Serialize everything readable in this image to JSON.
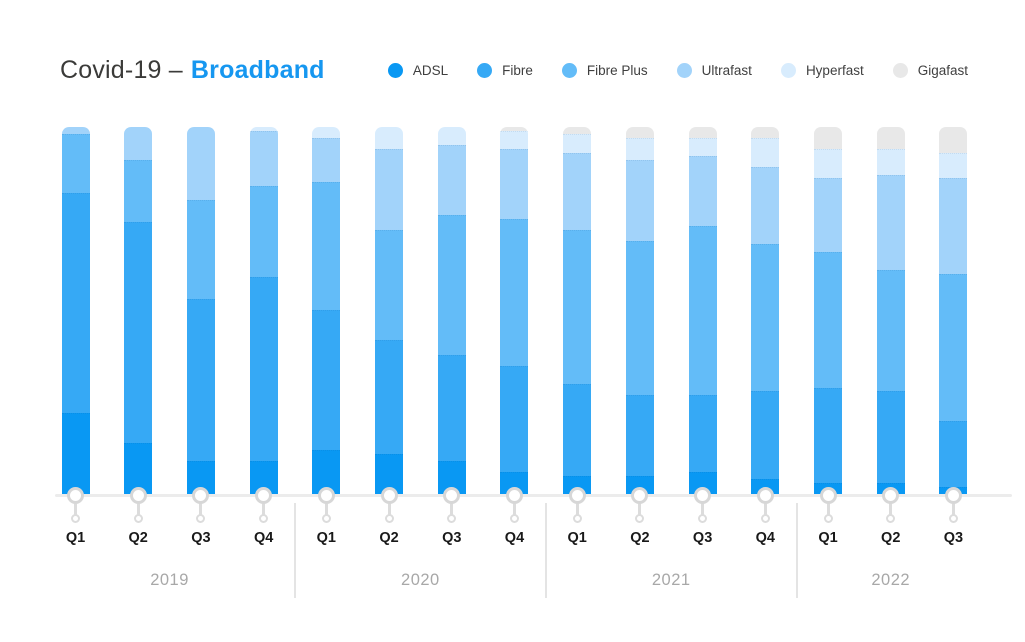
{
  "header": {
    "title_prefix": "Covid-19 –",
    "title_highlight": "Broadband",
    "title_highlight_color": "#1697f0"
  },
  "legend": {
    "position": "top-right",
    "items": [
      {
        "label": "ADSL",
        "color": "#0998f3"
      },
      {
        "label": "Fibre",
        "color": "#36a9f5"
      },
      {
        "label": "Fibre Plus",
        "color": "#63bcf8"
      },
      {
        "label": "Ultrafast",
        "color": "#a2d3fa"
      },
      {
        "label": "Hyperfast",
        "color": "#d8ecfd"
      },
      {
        "label": "Gigafast",
        "color": "#e8e8e8"
      }
    ]
  },
  "chart_data": {
    "type": "bar",
    "stacked": true,
    "unit": "percent",
    "ylim": [
      0,
      100
    ],
    "grid": false,
    "legend_position": "top-right",
    "categories": [
      "Q1",
      "Q2",
      "Q3",
      "Q4",
      "Q1",
      "Q2",
      "Q3",
      "Q4",
      "Q1",
      "Q2",
      "Q3",
      "Q4",
      "Q1",
      "Q2",
      "Q3"
    ],
    "year_groups": [
      {
        "label": "2019",
        "bar_count": 4
      },
      {
        "label": "2020",
        "bar_count": 4
      },
      {
        "label": "2021",
        "bar_count": 4
      },
      {
        "label": "2022",
        "bar_count": 3
      }
    ],
    "series": [
      {
        "name": "ADSL",
        "color": "#0998f3",
        "values": [
          22,
          14,
          9,
          9,
          12,
          11,
          9,
          6,
          5,
          5,
          6,
          4,
          3,
          3,
          2
        ]
      },
      {
        "name": "Fibre",
        "color": "#36a9f5",
        "values": [
          60,
          60,
          44,
          50,
          38,
          31,
          29,
          29,
          25,
          22,
          21,
          24,
          26,
          25,
          18
        ]
      },
      {
        "name": "Fibre Plus",
        "color": "#63bcf8",
        "values": [
          16,
          17,
          27,
          25,
          35,
          30,
          38,
          40,
          42,
          42,
          46,
          40,
          37,
          33,
          40
        ]
      },
      {
        "name": "Ultrafast",
        "color": "#a2d3fa",
        "values": [
          2,
          9,
          20,
          15,
          12,
          22,
          19,
          19,
          21,
          22,
          19,
          21,
          20,
          26,
          26
        ]
      },
      {
        "name": "Hyperfast",
        "color": "#d8ecfd",
        "values": [
          0,
          0,
          0,
          1,
          3,
          6,
          5,
          5,
          5,
          6,
          5,
          8,
          8,
          7,
          7
        ]
      },
      {
        "name": "Gigafast",
        "color": "#e8e8e8",
        "values": [
          0,
          0,
          0,
          0,
          0,
          0,
          0,
          1,
          2,
          3,
          3,
          3,
          6,
          6,
          7
        ]
      }
    ]
  }
}
